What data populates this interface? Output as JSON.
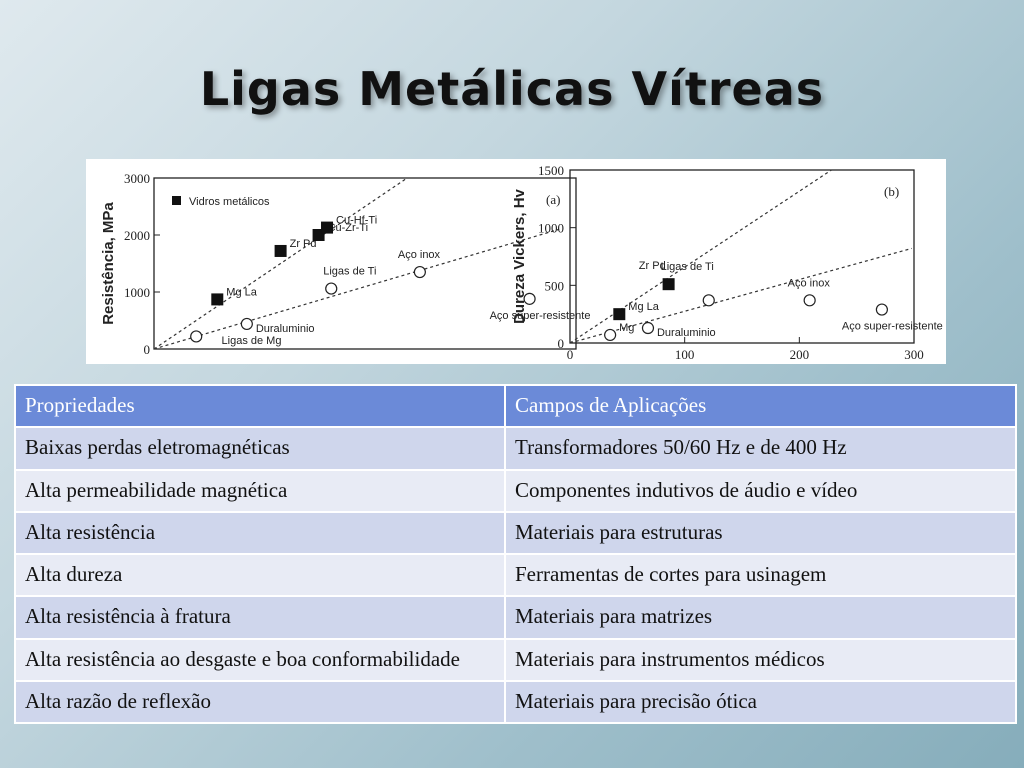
{
  "slide": {
    "title": "Ligas Metálicas Vítreas"
  },
  "table": {
    "headers": [
      "Propriedades",
      "Campos de Aplicações"
    ],
    "rows": [
      [
        "Baixas perdas eletromagnéticas",
        "Transformadores 50/60 Hz e de 400 Hz"
      ],
      [
        "Alta permeabilidade magnética",
        "Componentes indutivos de áudio e vídeo"
      ],
      [
        "Alta resistência",
        "Materiais para estruturas"
      ],
      [
        "Alta dureza",
        "Ferramentas de cortes para usinagem"
      ],
      [
        "Alta resistência à fratura",
        "Materiais para matrizes"
      ],
      [
        "Alta resistência ao desgaste e boa conformabilidade",
        "Materiais para instrumentos médicos"
      ],
      [
        "Alta razão de reflexão",
        "Materiais para precisão ótica"
      ]
    ]
  },
  "chart_data": [
    {
      "type": "scatter",
      "panel_label": "(a)",
      "ylabel": "Resistência, MPa",
      "yticks": [
        "0",
        "1000",
        "2000",
        "3000"
      ],
      "ylim": [
        0,
        3000
      ],
      "xlim": [
        0,
        1
      ],
      "legend": "Vidros metálicos",
      "series": [
        {
          "name": "Vidros metálicos",
          "marker": "filled-square",
          "points": [
            {
              "x": 0.15,
              "y": 870,
              "label": "Mg La"
            },
            {
              "x": 0.3,
              "y": 1720,
              "label": "Zr Pd"
            },
            {
              "x": 0.39,
              "y": 2000,
              "label": "Cu-Zr-Ti"
            },
            {
              "x": 0.41,
              "y": 2130,
              "label": "Cu-Hf-Ti"
            }
          ]
        },
        {
          "name": "",
          "marker": "open-circle",
          "points": [
            {
              "x": 0.1,
              "y": 220,
              "label": ""
            },
            {
              "x": 0.22,
              "y": 440,
              "label": "Duraluminio"
            },
            {
              "x": 0.42,
              "y": 1060,
              "label": "Ligas de Ti"
            },
            {
              "x": 0.63,
              "y": 1350,
              "label": "Aço inox"
            },
            {
              "x": 0.89,
              "y": 880,
              "label": "Aço super-resistente"
            }
          ]
        }
      ],
      "annotations": [
        "Ligas de Mg"
      ],
      "trend_lines": [
        {
          "from": {
            "x": 0.0,
            "y": 0
          },
          "to": {
            "x": 0.6,
            "y": 3000
          }
        },
        {
          "from": {
            "x": 0.0,
            "y": 0
          },
          "to": {
            "x": 0.96,
            "y": 2100
          }
        }
      ]
    },
    {
      "type": "scatter",
      "panel_label": "(b)",
      "ylabel": "Dureza Vickers, Hv",
      "yticks": [
        "0",
        "500",
        "1000",
        "1500"
      ],
      "xticks": [
        "0",
        "100",
        "200",
        "300"
      ],
      "ylim": [
        0,
        1500
      ],
      "xlim": [
        0,
        300
      ],
      "series": [
        {
          "name": "",
          "marker": "filled-square",
          "points": [
            {
              "x": 43,
              "y": 250,
              "label": "Mg La"
            },
            {
              "x": 86,
              "y": 510,
              "label": "Ligas de Ti"
            }
          ]
        },
        {
          "name": "",
          "marker": "open-circle",
          "points": [
            {
              "x": 35,
              "y": 70,
              "label": "Mg"
            },
            {
              "x": 68,
              "y": 130,
              "label": "Duraluminio"
            },
            {
              "x": 121,
              "y": 370,
              "label": ""
            },
            {
              "x": 209,
              "y": 370,
              "label": "Aço inox"
            },
            {
              "x": 272,
              "y": 290,
              "label": "Aço super-resistente"
            }
          ]
        }
      ],
      "annotations": [
        "Zr Pd"
      ],
      "trend_lines": [
        {
          "from": {
            "x": 0,
            "y": 0
          },
          "to": {
            "x": 228,
            "y": 1500
          }
        },
        {
          "from": {
            "x": 0,
            "y": 0
          },
          "to": {
            "x": 298,
            "y": 820
          }
        }
      ]
    }
  ]
}
